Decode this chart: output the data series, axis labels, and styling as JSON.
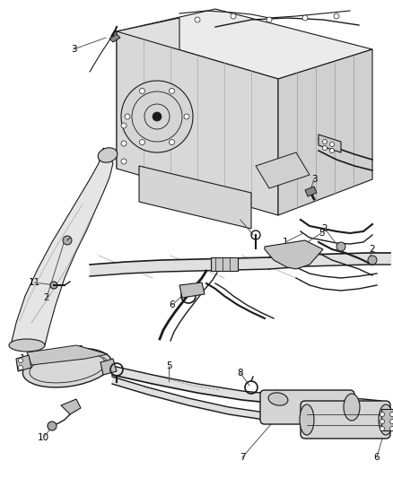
{
  "bg_color": "#ffffff",
  "line_color": "#1a1a1a",
  "gray_light": "#e8e8e8",
  "gray_mid": "#cccccc",
  "gray_dark": "#aaaaaa",
  "fig_width": 4.38,
  "fig_height": 5.33,
  "dpi": 100
}
